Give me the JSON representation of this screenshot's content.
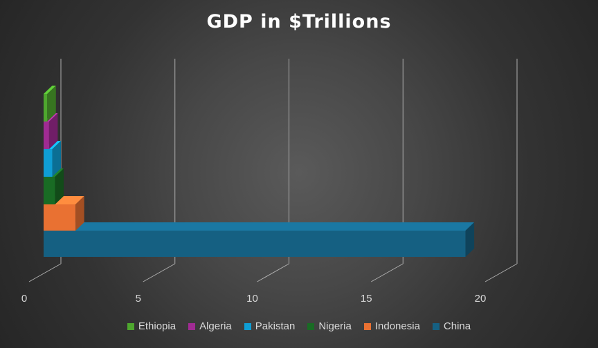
{
  "chart_data": {
    "type": "bar",
    "orientation": "horizontal",
    "three_d": true,
    "title": "GDP in $Trillions",
    "xlabel": "",
    "ylabel": "",
    "xlim": [
      0,
      20
    ],
    "x_ticks": [
      "0",
      "5",
      "10",
      "15",
      "20"
    ],
    "grid": true,
    "legend_position": "bottom",
    "series": [
      {
        "name": "China",
        "values": [
          18.5
        ],
        "color": "#156082"
      },
      {
        "name": "Indonesia",
        "values": [
          1.4
        ],
        "color": "#E97132"
      },
      {
        "name": "Nigeria",
        "values": [
          0.5
        ],
        "color": "#196B24"
      },
      {
        "name": "Pakistan",
        "values": [
          0.38
        ],
        "color": "#0F9ED5"
      },
      {
        "name": "Algeria",
        "values": [
          0.24
        ],
        "color": "#A02B93"
      },
      {
        "name": "Ethiopia",
        "values": [
          0.16
        ],
        "color": "#4EA72E"
      }
    ],
    "legend_order": [
      "Ethiopia",
      "Algeria",
      "Pakistan",
      "Nigeria",
      "Indonesia",
      "China"
    ]
  }
}
